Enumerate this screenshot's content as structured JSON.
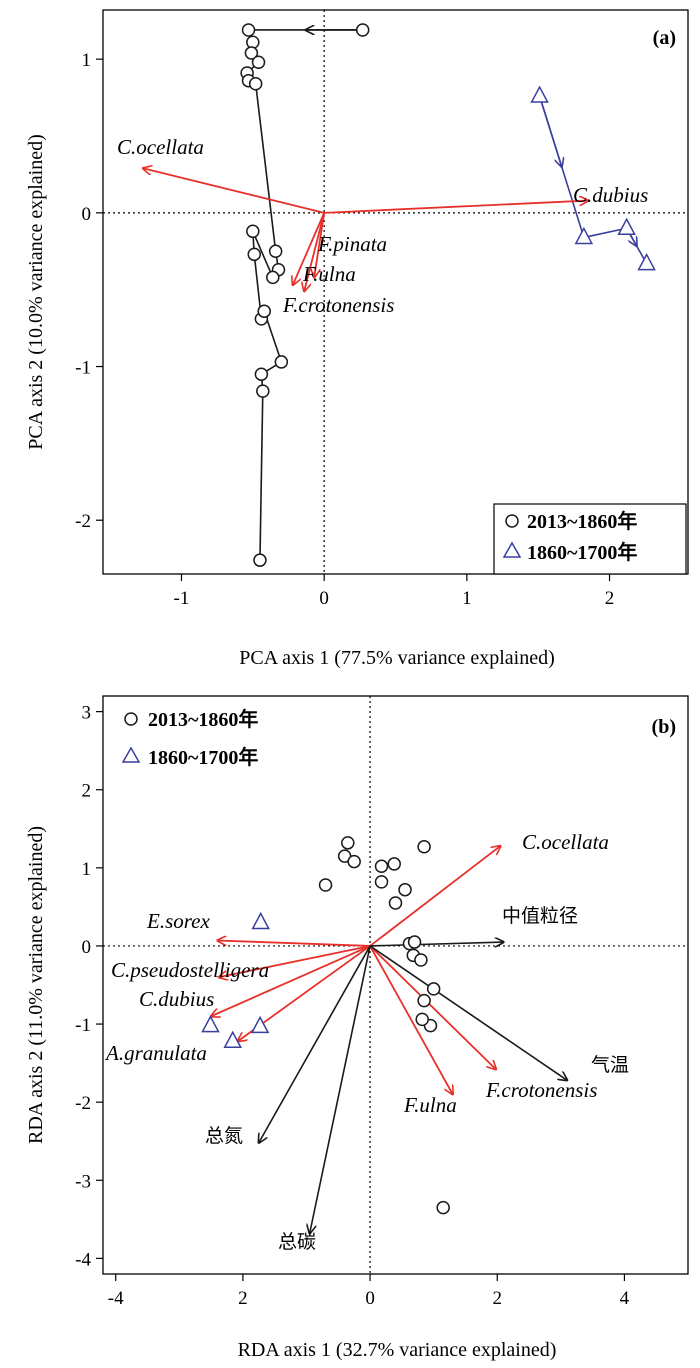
{
  "chart_data": [
    {
      "panel": "(a)",
      "type": "scatter",
      "xlabel": "PCA axis 1 (77.5% variance explained)",
      "ylabel": "PCA axis 2 (10.0% variance explained)",
      "xlim": [
        -1.55,
        2.55
      ],
      "ylim": [
        -2.35,
        1.32
      ],
      "xticks": [
        "-1",
        "0",
        "1",
        "2"
      ],
      "yticks": [
        "-2",
        "-1",
        "0",
        "1"
      ],
      "legend": {
        "position": "bottom-right",
        "entries": [
          "2013~1860年",
          "1860~1700年"
        ]
      },
      "colors": {
        "red": "#e8302a",
        "blue": "#3a3f9e",
        "black": "#1a1a1a"
      },
      "series": [
        {
          "name": "2013~1860年",
          "marker": "circle",
          "color": "#1a1a1a",
          "connected": true,
          "points": [
            [
              0.27,
              1.19
            ],
            [
              -0.53,
              1.19
            ],
            [
              -0.5,
              1.11
            ],
            [
              -0.51,
              1.04
            ],
            [
              -0.46,
              0.98
            ],
            [
              -0.54,
              0.91
            ],
            [
              -0.53,
              0.86
            ],
            [
              -0.48,
              0.84
            ],
            [
              -0.34,
              -0.25
            ],
            [
              -0.32,
              -0.37
            ],
            [
              -0.36,
              -0.42
            ],
            [
              -0.5,
              -0.12
            ],
            [
              -0.49,
              -0.27
            ],
            [
              -0.44,
              -0.69
            ],
            [
              -0.42,
              -0.64
            ],
            [
              -0.3,
              -0.97
            ],
            [
              -0.44,
              -1.05
            ],
            [
              -0.43,
              -1.16
            ],
            [
              -0.45,
              -2.26
            ]
          ]
        },
        {
          "name": "1860~1700年",
          "marker": "triangle",
          "color": "#3a3f9e",
          "connected": true,
          "points": [
            [
              1.51,
              0.76
            ],
            [
              1.82,
              -0.16
            ],
            [
              2.12,
              -0.1
            ],
            [
              2.26,
              -0.33
            ]
          ]
        }
      ],
      "arrows": [
        {
          "label": "C.ocellata",
          "color": "#e8302a",
          "x": -1.27,
          "y": 0.29
        },
        {
          "label": "C.dubius",
          "color": "#e8302a",
          "x": 1.85,
          "y": 0.08
        },
        {
          "label": "F.pinata",
          "color": "#e8302a",
          "x": -0.07,
          "y": -0.42
        },
        {
          "label": "F.ulna",
          "color": "#e8302a",
          "x": -0.22,
          "y": -0.47
        },
        {
          "label": "F.crotonensis",
          "color": "#e8302a",
          "x": -0.14,
          "y": -0.51
        }
      ]
    },
    {
      "panel": "(b)",
      "type": "scatter",
      "xlabel": "RDA axis 1 (32.7% variance explained)",
      "ylabel": "RDA axis 2 (11.0% variance explained)",
      "xlim": [
        -4.2,
        5.0
      ],
      "ylim": [
        -4.2,
        3.2
      ],
      "xticks": [
        "-4",
        "2",
        "0",
        "2",
        "4"
      ],
      "yticks": [
        "-4",
        "-3",
        "-2",
        "-1",
        "0",
        "1",
        "2",
        "3"
      ],
      "legend": {
        "position": "top-left",
        "entries": [
          "2013~1860年",
          "1860~1700年"
        ]
      },
      "series": [
        {
          "name": "2013~1860年",
          "marker": "circle",
          "color": "#1a1a1a",
          "points": [
            [
              -0.35,
              1.32
            ],
            [
              -0.4,
              1.15
            ],
            [
              -0.25,
              1.08
            ],
            [
              0.85,
              1.27
            ],
            [
              0.18,
              1.02
            ],
            [
              0.38,
              1.05
            ],
            [
              0.55,
              0.72
            ],
            [
              0.18,
              0.82
            ],
            [
              0.4,
              0.55
            ],
            [
              -0.7,
              0.78
            ],
            [
              0.62,
              0.03
            ],
            [
              0.7,
              0.05
            ],
            [
              0.68,
              -0.12
            ],
            [
              0.8,
              -0.18
            ],
            [
              1.0,
              -0.55
            ],
            [
              0.85,
              -0.7
            ],
            [
              0.95,
              -1.02
            ],
            [
              0.82,
              -0.94
            ],
            [
              1.15,
              -3.35
            ]
          ]
        },
        {
          "name": "1860~1700年",
          "marker": "triangle",
          "color": "#3a3f9e",
          "points": [
            [
              -1.72,
              0.3
            ],
            [
              -2.51,
              -1.02
            ],
            [
              -1.73,
              -1.03
            ],
            [
              -2.16,
              -1.22
            ]
          ]
        }
      ],
      "species_arrows": [
        {
          "label": "C.ocellata",
          "color": "#e8302a",
          "x": 2.05,
          "y": 1.28
        },
        {
          "label": "E.sorex",
          "color": "#e8302a",
          "x": -2.4,
          "y": 0.07
        },
        {
          "label": "C.pseudostelligera",
          "color": "#e8302a",
          "x": -2.38,
          "y": -0.4
        },
        {
          "label": "C.dubius",
          "color": "#e8302a",
          "x": -2.5,
          "y": -0.9
        },
        {
          "label": "A.granulata",
          "color": "#e8302a",
          "x": -2.08,
          "y": -1.22
        },
        {
          "label": "F.ulna",
          "color": "#e8302a",
          "x": 1.3,
          "y": -1.9
        },
        {
          "label": "F.crotonensis",
          "color": "#e8302a",
          "x": 1.98,
          "y": -1.58
        }
      ],
      "env_arrows": [
        {
          "label": "中值粒径",
          "color": "#1a1a1a",
          "x": 2.1,
          "y": 0.05
        },
        {
          "label": "气温",
          "color": "#1a1a1a",
          "x": 3.1,
          "y": -1.72
        },
        {
          "label": "总氮",
          "color": "#1a1a1a",
          "x": -1.75,
          "y": -2.52
        },
        {
          "label": "总碳",
          "color": "#1a1a1a",
          "x": -0.95,
          "y": -3.68
        }
      ]
    }
  ]
}
